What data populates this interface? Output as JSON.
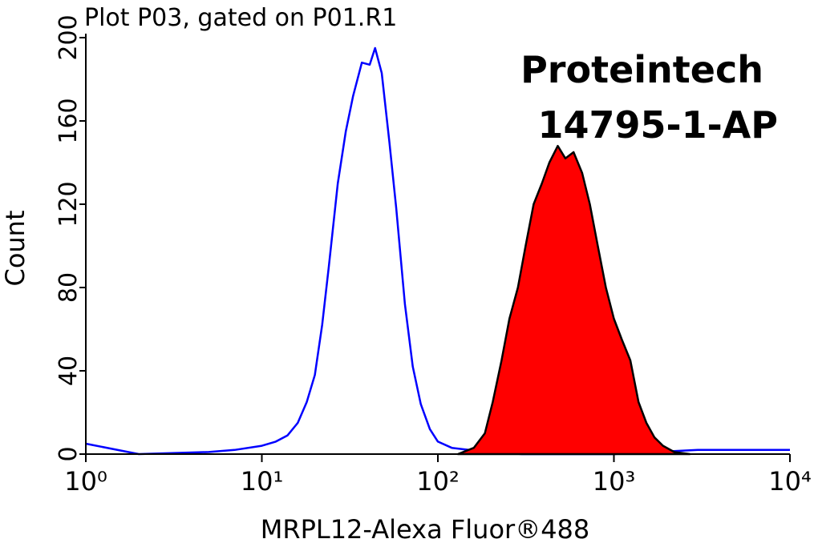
{
  "chart_data": {
    "type": "histogram_overlay",
    "title": "Plot P03, gated on P01.R1",
    "annotations": [
      "Proteintech",
      "14795-1-AP"
    ],
    "xlabel": "MRPL12-Alexa Fluor®488",
    "ylabel": "Count",
    "xscale": "log",
    "xlim": [
      1,
      10000
    ],
    "xticks": [
      {
        "value": 1,
        "label": "10⁰"
      },
      {
        "value": 10,
        "label": "10¹"
      },
      {
        "value": 100,
        "label": "10²"
      },
      {
        "value": 1000,
        "label": "10³"
      },
      {
        "value": 10000,
        "label": "10⁴"
      }
    ],
    "ylim": [
      0,
      200
    ],
    "yticks": [
      0,
      40,
      80,
      120,
      160,
      200
    ],
    "series": [
      {
        "color": "#0000ff",
        "filled": false,
        "x": [
          1,
          2,
          5,
          7,
          10,
          12,
          14,
          16,
          18,
          20,
          22,
          24,
          27,
          30,
          33,
          37,
          41,
          44,
          48,
          53,
          58,
          65,
          72,
          80,
          90,
          100,
          120,
          150,
          200,
          300,
          1000,
          3000,
          10000
        ],
        "values": [
          5,
          0,
          1,
          2,
          4,
          6,
          9,
          15,
          25,
          38,
          62,
          90,
          130,
          155,
          172,
          188,
          187,
          195,
          183,
          150,
          118,
          72,
          42,
          24,
          12,
          6,
          3,
          2,
          1,
          0,
          0,
          2,
          2
        ]
      },
      {
        "color": "#ff0000",
        "edge_color": "#000000",
        "filled": true,
        "x": [
          130,
          160,
          185,
          205,
          230,
          255,
          285,
          315,
          350,
          390,
          430,
          480,
          530,
          590,
          660,
          730,
          810,
          900,
          1000,
          1110,
          1240,
          1380,
          1530,
          1700,
          1900,
          2200,
          2700
        ],
        "values": [
          0,
          3,
          10,
          25,
          45,
          65,
          80,
          100,
          120,
          130,
          140,
          148,
          142,
          145,
          135,
          120,
          100,
          80,
          65,
          55,
          45,
          25,
          15,
          8,
          4,
          1,
          0
        ]
      }
    ]
  }
}
